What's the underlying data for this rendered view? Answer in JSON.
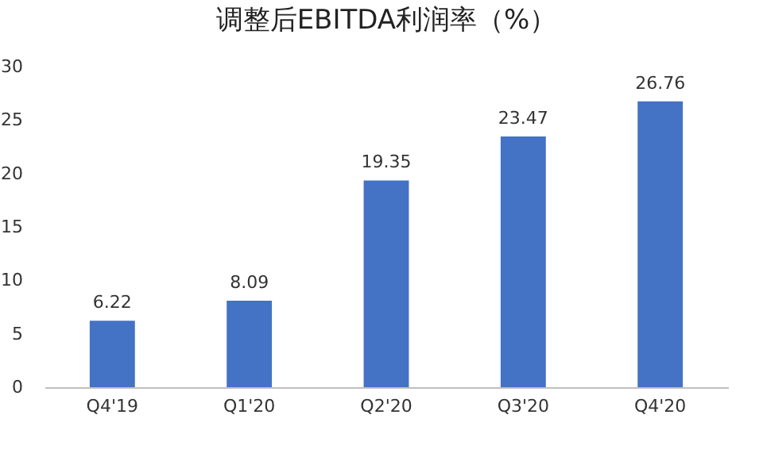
{
  "chart_data": {
    "type": "bar",
    "title": "调整后EBITDA利润率（%）",
    "categories": [
      "Q4'19",
      "Q1'20",
      "Q2'20",
      "Q3'20",
      "Q4'20"
    ],
    "values": [
      6.22,
      8.09,
      19.35,
      23.47,
      26.76
    ],
    "color": "#4472c4",
    "ylim": [
      0,
      30
    ],
    "yticks": [
      0,
      5,
      10,
      15,
      20,
      25,
      30
    ],
    "data_labels": true
  }
}
